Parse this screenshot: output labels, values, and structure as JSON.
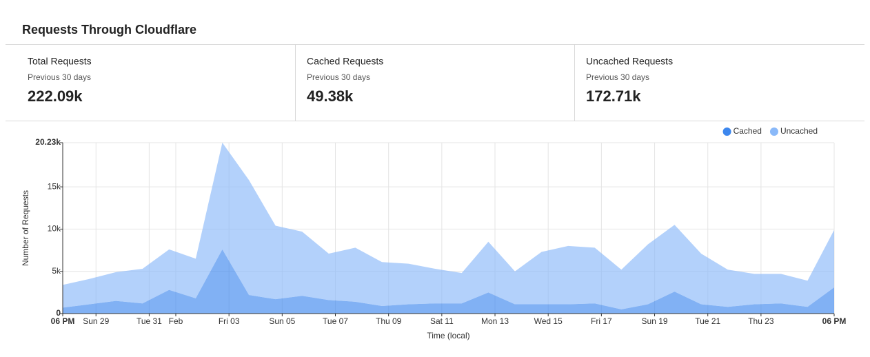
{
  "header": {
    "title": "Requests Through Cloudflare"
  },
  "stats": [
    {
      "label": "Total Requests",
      "period": "Previous 30 days",
      "value": "222.09k"
    },
    {
      "label": "Cached Requests",
      "period": "Previous 30 days",
      "value": "49.38k"
    },
    {
      "label": "Uncached Requests",
      "period": "Previous 30 days",
      "value": "172.71k"
    }
  ],
  "chart_data": {
    "type": "stacked-area",
    "xlabel": "Time (local)",
    "ylabel": "Number of Requests",
    "x": [
      0,
      1,
      2,
      3,
      4,
      5,
      6,
      7,
      8,
      9,
      10,
      11,
      12,
      13,
      14,
      15,
      16,
      17,
      18,
      19,
      20,
      21,
      22,
      23,
      24,
      25,
      26,
      27,
      28,
      29
    ],
    "xlim": [
      0,
      29
    ],
    "xticks": [
      {
        "value": 0,
        "label": "06 PM"
      },
      {
        "value": 1.25,
        "label": "Sun 29"
      },
      {
        "value": 3.25,
        "label": "Tue 31"
      },
      {
        "value": 4.25,
        "label": "Feb"
      },
      {
        "value": 6.25,
        "label": "Fri 03"
      },
      {
        "value": 8.25,
        "label": "Sun 05"
      },
      {
        "value": 10.25,
        "label": "Tue 07"
      },
      {
        "value": 12.25,
        "label": "Thu 09"
      },
      {
        "value": 14.25,
        "label": "Sat 11"
      },
      {
        "value": 16.25,
        "label": "Mon 13"
      },
      {
        "value": 18.25,
        "label": "Wed 15"
      },
      {
        "value": 20.25,
        "label": "Fri 17"
      },
      {
        "value": 22.25,
        "label": "Sun 19"
      },
      {
        "value": 24.25,
        "label": "Tue 21"
      },
      {
        "value": 26.25,
        "label": "Thu 23"
      },
      {
        "value": 29,
        "label": "06 PM"
      }
    ],
    "ylim": [
      0,
      20230
    ],
    "yticks": [
      0,
      {
        "value": 5000,
        "label": "5k"
      },
      {
        "value": 10000,
        "label": "10k"
      },
      {
        "value": 15000,
        "label": "15k"
      },
      {
        "value": 20230,
        "label": "20.23k"
      }
    ],
    "grid": true,
    "legend": "top-right",
    "series": [
      {
        "name": "Cached",
        "color": "#3d87ee",
        "values": [
          700,
          1100,
          1500,
          1200,
          2800,
          1800,
          7600,
          2200,
          1700,
          2100,
          1600,
          1400,
          900,
          1100,
          1200,
          1200,
          2500,
          1100,
          1100,
          1100,
          1200,
          500,
          1100,
          2600,
          1100,
          800,
          1100,
          1200,
          800,
          3100
        ]
      },
      {
        "name": "Uncached",
        "color": "#8ab9f9",
        "values": [
          2700,
          3000,
          3400,
          4100,
          4800,
          4700,
          12630,
          13600,
          8700,
          7600,
          5500,
          6400,
          5200,
          4800,
          4100,
          3600,
          6000,
          3900,
          6200,
          6900,
          6600,
          4700,
          7100,
          7900,
          6000,
          4400,
          3600,
          3500,
          3100,
          6800
        ]
      }
    ]
  }
}
